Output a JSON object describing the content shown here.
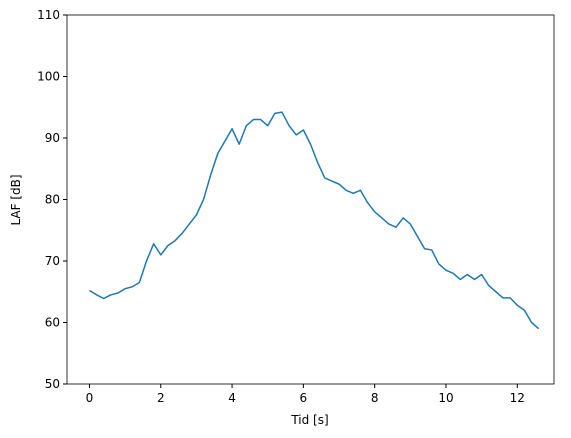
{
  "chart_data": {
    "type": "line",
    "x_label": "Tid [s]",
    "y_label": "LAF [dB]",
    "x": [
      0,
      0.2,
      0.4,
      0.6,
      0.8,
      1.0,
      1.2,
      1.4,
      1.6,
      1.8,
      2.0,
      2.2,
      2.4,
      2.6,
      2.8,
      3.0,
      3.2,
      3.4,
      3.6,
      3.8,
      4.0,
      4.2,
      4.4,
      4.6,
      4.8,
      5.0,
      5.2,
      5.4,
      5.6,
      5.8,
      6.0,
      6.2,
      6.4,
      6.6,
      6.8,
      7.0,
      7.2,
      7.4,
      7.6,
      7.8,
      8.0,
      8.2,
      8.4,
      8.6,
      8.8,
      9.0,
      9.2,
      9.4,
      9.6,
      9.8,
      10.0,
      10.2,
      10.4,
      10.6,
      10.8,
      11.0,
      11.2,
      11.4,
      11.6,
      11.8,
      12.0,
      12.2,
      12.4,
      12.6
    ],
    "series": [
      {
        "color": "#1f77b4",
        "values": [
          65.2,
          64.5,
          63.9,
          64.5,
          64.8,
          65.5,
          65.8,
          66.5,
          70,
          72.8,
          71,
          72.5,
          73.3,
          74.5,
          76,
          77.5,
          80,
          84,
          87.5,
          89.5,
          91.5,
          89,
          92,
          93,
          93,
          92,
          94,
          94.2,
          92,
          90.5,
          91.3,
          89,
          86,
          83.5,
          83,
          82.5,
          81.5,
          81,
          81.5,
          79.5,
          78,
          77,
          76,
          75.5,
          77,
          76,
          74,
          72,
          71.8,
          69.5,
          68.5,
          68,
          67,
          67.8,
          67,
          67.8,
          66,
          65,
          64,
          64,
          62.8,
          62,
          60,
          59
        ]
      }
    ],
    "xlim": [
      -0.63,
      13.03
    ],
    "ylim": [
      50,
      110
    ],
    "xticks": [
      0,
      2,
      4,
      6,
      8,
      10,
      12
    ],
    "yticks": [
      50,
      60,
      70,
      80,
      90,
      100,
      110
    ]
  }
}
